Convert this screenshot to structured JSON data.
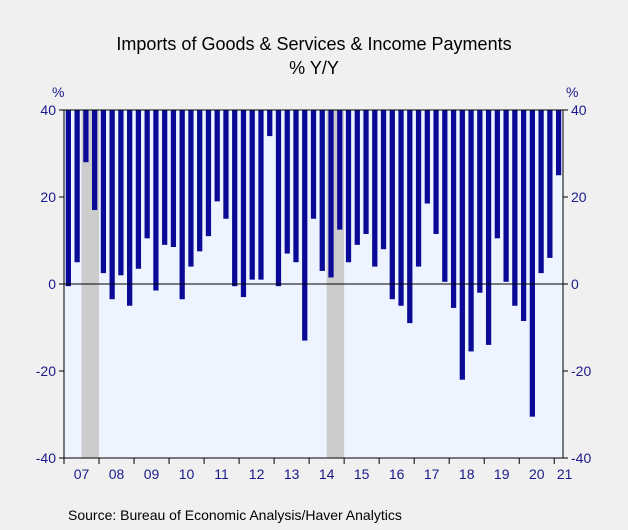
{
  "chart_data": {
    "type": "bar",
    "title": "Imports of Goods & Services & Income Payments",
    "subtitle": "% Y/Y",
    "y_unit_left": "%",
    "y_unit_right": "%",
    "ylim": [
      -40,
      40
    ],
    "y_ticks": [
      40,
      20,
      0,
      -20,
      -40
    ],
    "x_tick_labels": [
      "07",
      "08",
      "09",
      "10",
      "11",
      "12",
      "13",
      "14",
      "15",
      "16",
      "17",
      "18",
      "19",
      "20",
      "21"
    ],
    "bar_top": 40,
    "values": [
      -0.5,
      5,
      28,
      17,
      2.5,
      -3.5,
      2,
      -5,
      3.5,
      10.5,
      -1.5,
      9,
      8.5,
      -3.5,
      4,
      7.5,
      11,
      19,
      15,
      -0.5,
      -3,
      1,
      1,
      34,
      -0.5,
      7,
      5,
      -13,
      15,
      3,
      1.5,
      12.5,
      5,
      9,
      11.5,
      4,
      8,
      -3.5,
      -5,
      -9,
      4,
      18.5,
      11.5,
      0.5,
      -5.5,
      -22,
      -15.5,
      -2,
      -14,
      10.5,
      0.5,
      -5,
      -8.5,
      -30.5,
      2.5,
      6,
      25
    ],
    "recession_bands": [
      {
        "start_index": 8,
        "end_index": 16
      },
      {
        "start_index": 120,
        "end_index": 128
      }
    ],
    "grid": false,
    "source": "Source:  Bureau of Economic Analysis/Haver Analytics",
    "colors": {
      "bar": "#0a0a96",
      "plot_bg": "#eef4ff",
      "recession": "#cccccc",
      "axis_text": "#1a1a8c",
      "page_bg": "#f0f0f0"
    }
  }
}
